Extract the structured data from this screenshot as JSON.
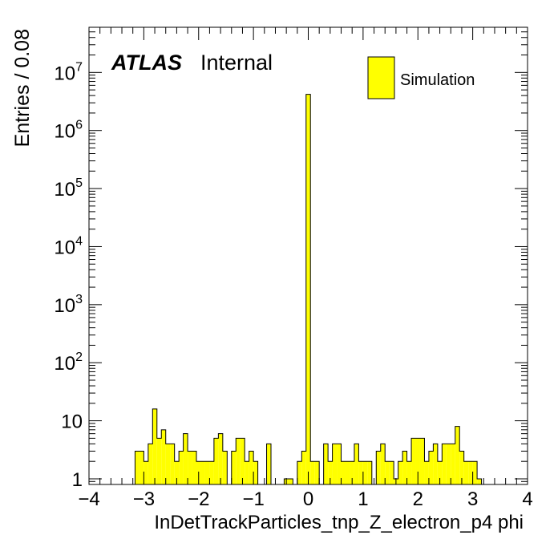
{
  "chart_data": {
    "type": "bar",
    "xlabel": "InDetTrackParticles_tnp_Z_electron_p4 phi",
    "ylabel": "Entries / 0.08",
    "xlim": [
      -4,
      4
    ],
    "ylim": [
      0.8,
      60000000
    ],
    "yscale": "log",
    "bin_width": 0.08,
    "fill_color": "#ffff00",
    "edge_color": "#000000",
    "atlas_label": "ATLAS",
    "status_label": "Internal",
    "legend": {
      "position": "top-right",
      "entries": [
        "Simulation"
      ]
    },
    "x_ticks": [
      {
        "value": -4,
        "label": "−4"
      },
      {
        "value": -3,
        "label": "−3"
      },
      {
        "value": -2,
        "label": "−2"
      },
      {
        "value": -1,
        "label": "−1"
      },
      {
        "value": 0,
        "label": "0"
      },
      {
        "value": 1,
        "label": "1"
      },
      {
        "value": 2,
        "label": "2"
      },
      {
        "value": 3,
        "label": "3"
      },
      {
        "value": 4,
        "label": "4"
      }
    ],
    "y_ticks": [
      {
        "value": 1,
        "base": "1",
        "exp": ""
      },
      {
        "value": 10,
        "base": "10",
        "exp": ""
      },
      {
        "value": 100,
        "base": "10",
        "exp": "2"
      },
      {
        "value": 1000,
        "base": "10",
        "exp": "3"
      },
      {
        "value": 10000,
        "base": "10",
        "exp": "4"
      },
      {
        "value": 100000,
        "base": "10",
        "exp": "5"
      },
      {
        "value": 1000000,
        "base": "10",
        "exp": "6"
      },
      {
        "value": 10000000,
        "base": "10",
        "exp": "7"
      }
    ],
    "bins": [
      {
        "x": -3.12,
        "y": 3
      },
      {
        "x": -3.04,
        "y": 3
      },
      {
        "x": -2.96,
        "y": 2
      },
      {
        "x": -2.88,
        "y": 4
      },
      {
        "x": -2.8,
        "y": 16
      },
      {
        "x": -2.72,
        "y": 5
      },
      {
        "x": -2.64,
        "y": 7
      },
      {
        "x": -2.56,
        "y": 4
      },
      {
        "x": -2.48,
        "y": 4
      },
      {
        "x": -2.4,
        "y": 2
      },
      {
        "x": -2.32,
        "y": 3
      },
      {
        "x": -2.24,
        "y": 6
      },
      {
        "x": -2.16,
        "y": 3
      },
      {
        "x": -2.08,
        "y": 3
      },
      {
        "x": -2.0,
        "y": 2
      },
      {
        "x": -1.92,
        "y": 2
      },
      {
        "x": -1.84,
        "y": 2
      },
      {
        "x": -1.76,
        "y": 2
      },
      {
        "x": -1.68,
        "y": 5
      },
      {
        "x": -1.6,
        "y": 6
      },
      {
        "x": -1.52,
        "y": 3
      },
      {
        "x": -1.36,
        "y": 3
      },
      {
        "x": -1.28,
        "y": 5
      },
      {
        "x": -1.2,
        "y": 5
      },
      {
        "x": -1.12,
        "y": 2
      },
      {
        "x": -1.04,
        "y": 3
      },
      {
        "x": -0.96,
        "y": 2
      },
      {
        "x": -0.72,
        "y": 4
      },
      {
        "x": -0.4,
        "y": 1
      },
      {
        "x": -0.32,
        "y": 1
      },
      {
        "x": -0.16,
        "y": 2
      },
      {
        "x": -0.08,
        "y": 3
      },
      {
        "x": 0.0,
        "y": 4200000
      },
      {
        "x": 0.08,
        "y": 2
      },
      {
        "x": 0.16,
        "y": 2
      },
      {
        "x": 0.32,
        "y": 4
      },
      {
        "x": 0.4,
        "y": 2
      },
      {
        "x": 0.48,
        "y": 4
      },
      {
        "x": 0.56,
        "y": 4
      },
      {
        "x": 0.64,
        "y": 2
      },
      {
        "x": 0.72,
        "y": 2
      },
      {
        "x": 0.8,
        "y": 2
      },
      {
        "x": 0.88,
        "y": 4
      },
      {
        "x": 0.96,
        "y": 2
      },
      {
        "x": 1.04,
        "y": 2
      },
      {
        "x": 1.12,
        "y": 2
      },
      {
        "x": 1.28,
        "y": 3
      },
      {
        "x": 1.36,
        "y": 4
      },
      {
        "x": 1.44,
        "y": 2
      },
      {
        "x": 1.52,
        "y": 2
      },
      {
        "x": 1.6,
        "y": 1
      },
      {
        "x": 1.68,
        "y": 2
      },
      {
        "x": 1.76,
        "y": 3
      },
      {
        "x": 1.84,
        "y": 2
      },
      {
        "x": 1.92,
        "y": 5
      },
      {
        "x": 2.0,
        "y": 5
      },
      {
        "x": 2.08,
        "y": 5
      },
      {
        "x": 2.16,
        "y": 2
      },
      {
        "x": 2.24,
        "y": 3
      },
      {
        "x": 2.32,
        "y": 4
      },
      {
        "x": 2.4,
        "y": 2
      },
      {
        "x": 2.48,
        "y": 4
      },
      {
        "x": 2.56,
        "y": 4
      },
      {
        "x": 2.64,
        "y": 4
      },
      {
        "x": 2.72,
        "y": 8
      },
      {
        "x": 2.8,
        "y": 3
      },
      {
        "x": 2.88,
        "y": 2
      },
      {
        "x": 2.96,
        "y": 2
      },
      {
        "x": 3.04,
        "y": 2
      },
      {
        "x": 3.12,
        "y": 1
      }
    ]
  }
}
